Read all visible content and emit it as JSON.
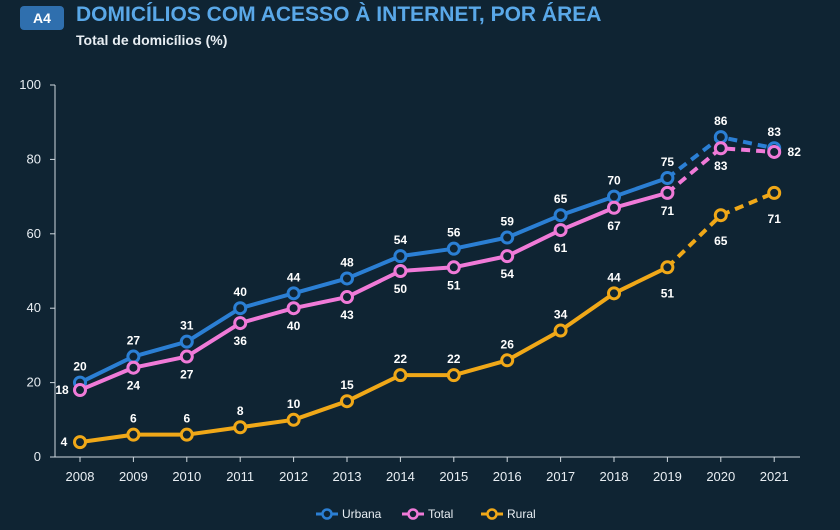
{
  "header": {
    "badge": "A4",
    "title": "DOMICÍLIOS COM ACESSO À INTERNET, POR ÁREA",
    "subtitle": "Total de domicílios (%)"
  },
  "chart_data": {
    "type": "line",
    "title": "DOMICÍLIOS COM ACESSO À INTERNET, POR ÁREA",
    "ylabel": "Total de domicílios (%)",
    "xlabel": "",
    "categories": [
      "2008",
      "2009",
      "2010",
      "2011",
      "2012",
      "2013",
      "2014",
      "2015",
      "2016",
      "2017",
      "2018",
      "2019",
      "2020",
      "2021"
    ],
    "ylim": [
      0,
      100
    ],
    "yticks": [
      0,
      20,
      40,
      60,
      80,
      100
    ],
    "dashed_from_index": 11,
    "legend_position": "bottom-right",
    "series": [
      {
        "name": "Urbana",
        "color": "#2b7fd4",
        "values": [
          20,
          27,
          31,
          40,
          44,
          48,
          54,
          56,
          59,
          65,
          70,
          75,
          86,
          83
        ],
        "label_pos": "above"
      },
      {
        "name": "Total",
        "color": "#f07ad8",
        "values": [
          18,
          24,
          27,
          36,
          40,
          43,
          50,
          51,
          54,
          61,
          67,
          71,
          83,
          82
        ],
        "label_pos": "below"
      },
      {
        "name": "Rural",
        "color": "#f0a818",
        "values": [
          4,
          6,
          6,
          8,
          10,
          15,
          22,
          22,
          26,
          34,
          44,
          51,
          65,
          71
        ],
        "label_pos": "above"
      }
    ]
  }
}
